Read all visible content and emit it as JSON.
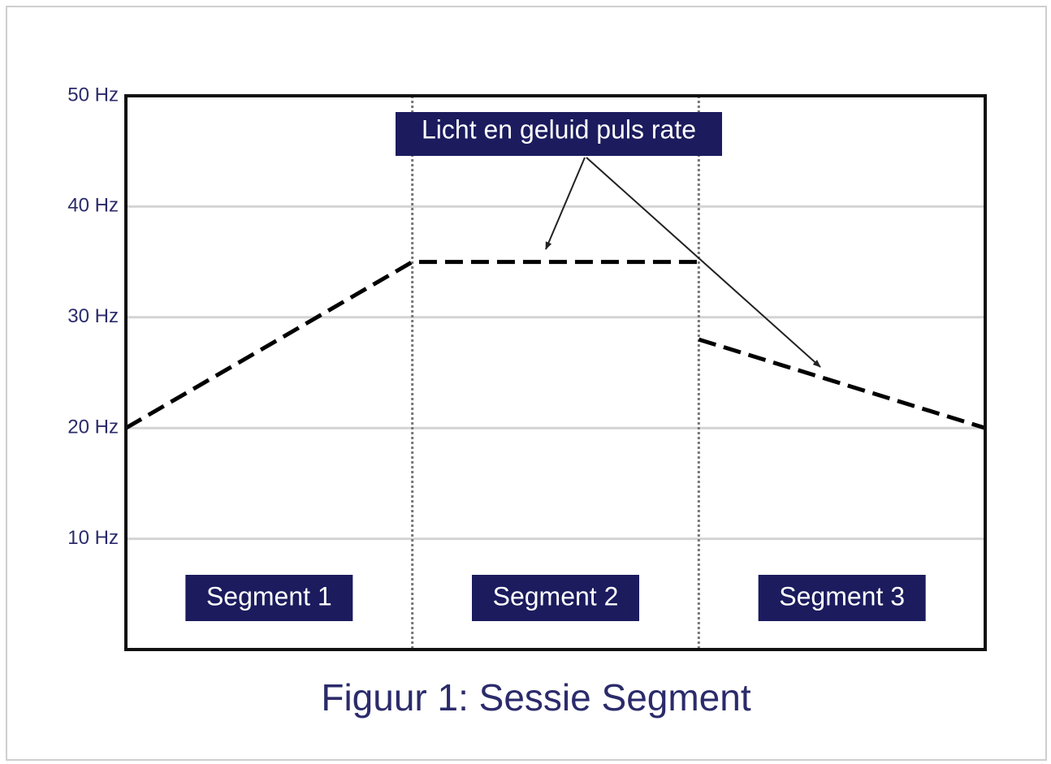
{
  "chart_data": {
    "type": "line",
    "title": "Figuur 1:  Sessie Segment",
    "annotation": "Licht en geluid puls rate",
    "x": [
      0,
      1,
      2,
      2,
      2,
      3
    ],
    "xlim": [
      0,
      3
    ],
    "series": [
      {
        "color": "#000000",
        "values": [
          20,
          35,
          35,
          null,
          28,
          20
        ]
      }
    ],
    "ylim": [
      0,
      50
    ],
    "yticks": [
      {
        "value": 10,
        "label": "10 Hz"
      },
      {
        "value": 20,
        "label": "20 Hz"
      },
      {
        "value": 30,
        "label": "30 Hz"
      },
      {
        "value": 40,
        "label": "40 Hz"
      },
      {
        "value": 50,
        "label": "50 Hz"
      }
    ],
    "grid": true,
    "segments": [
      {
        "label": "Segment 1",
        "start": 0,
        "end": 1
      },
      {
        "label": "Segment 2",
        "start": 1,
        "end": 2
      },
      {
        "label": "Segment 3",
        "start": 2,
        "end": 3
      }
    ]
  }
}
